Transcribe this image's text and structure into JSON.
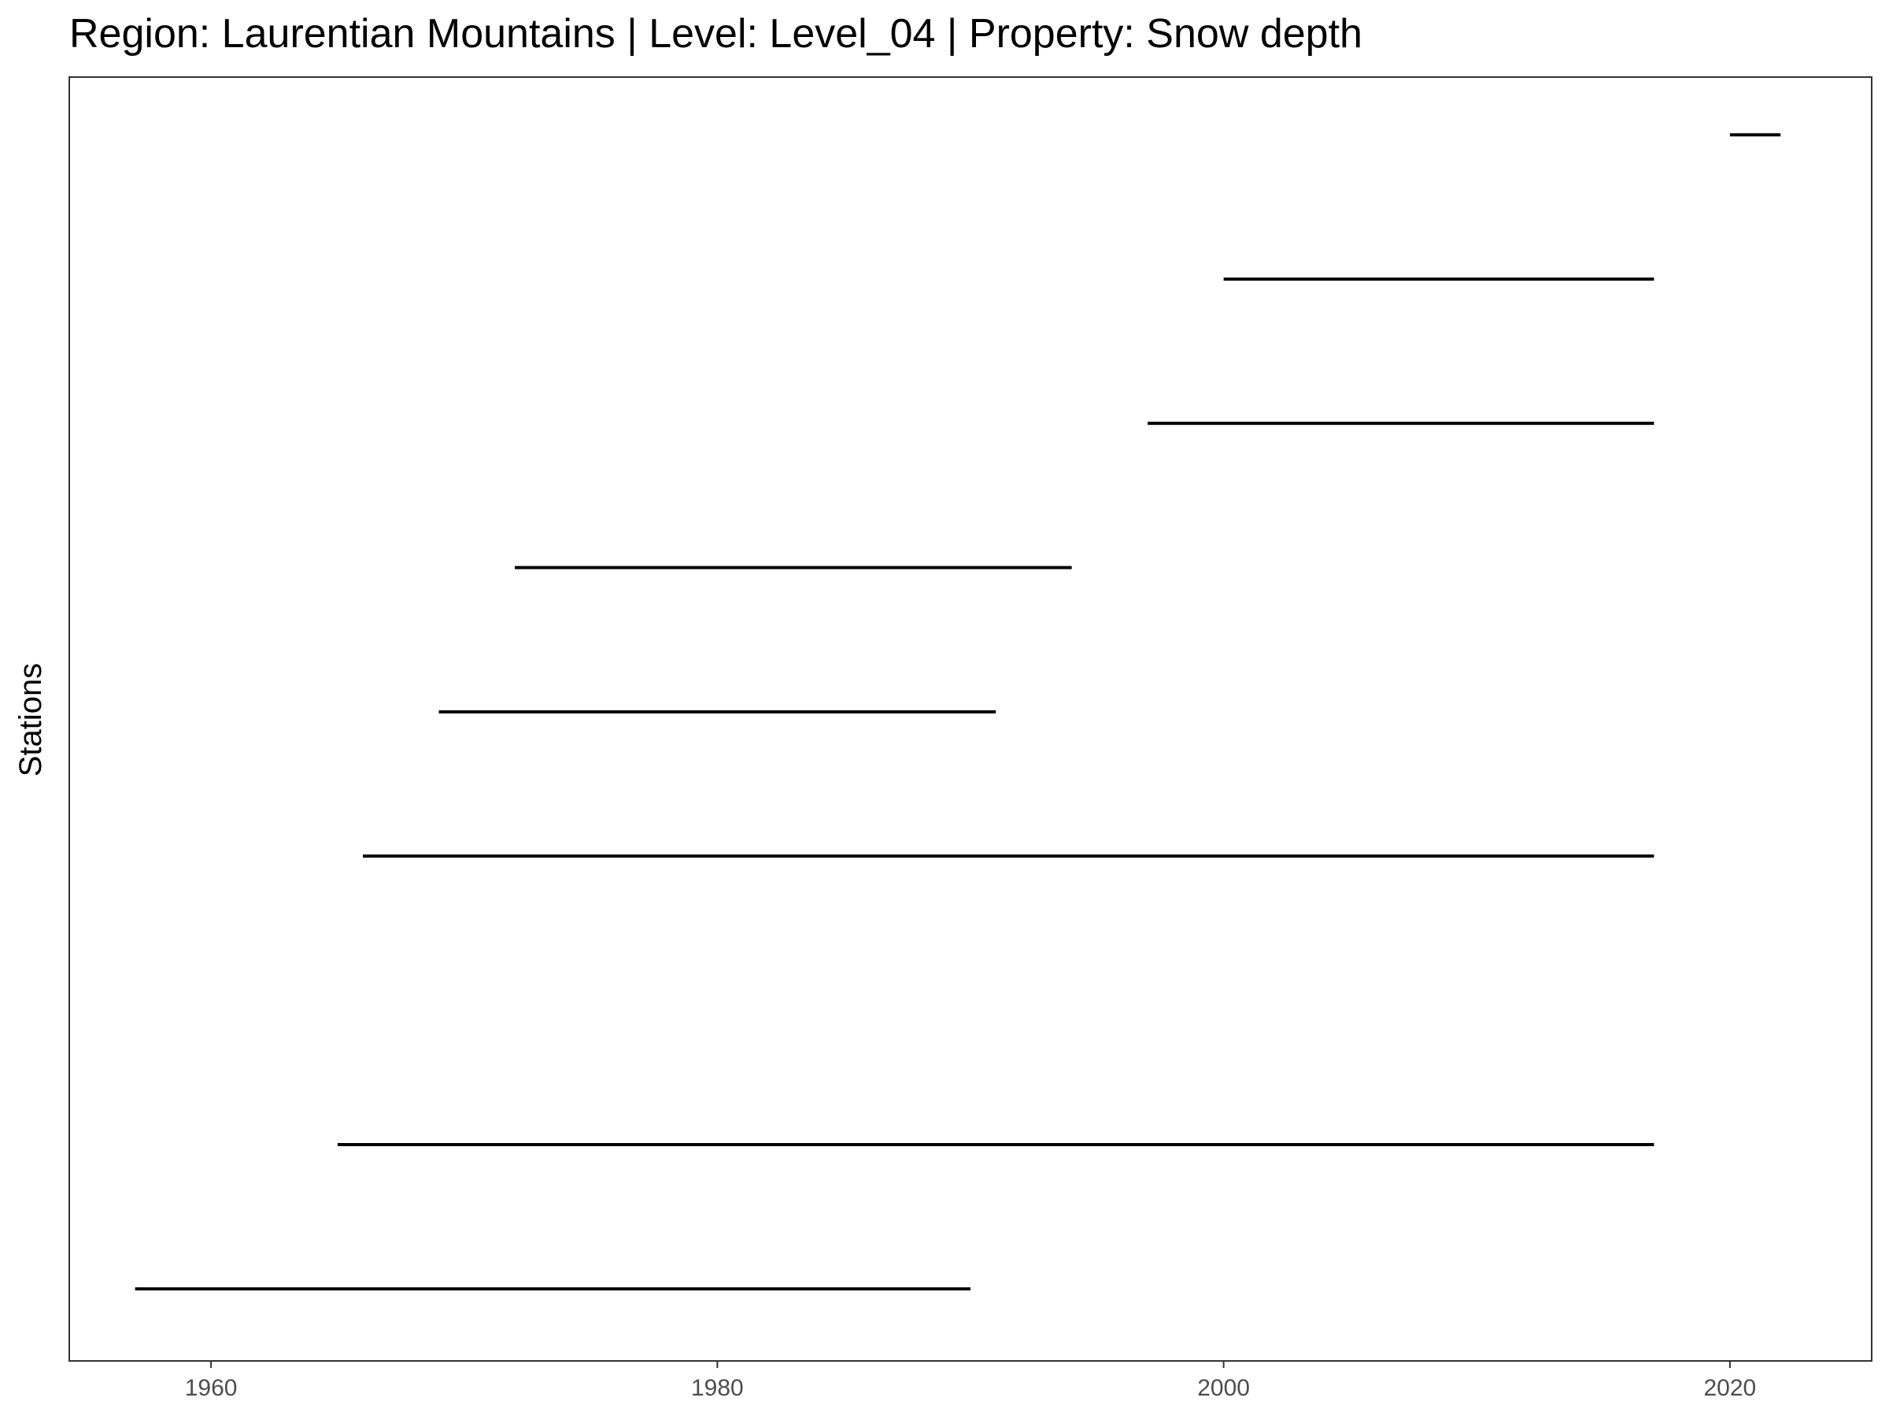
{
  "chart_data": {
    "type": "line",
    "title": "Region: Laurentian Mountains | Level: Level_04 | Property: Snow depth",
    "xlabel": "",
    "ylabel": "Stations",
    "xlim": [
      1954.4,
      2025.6
    ],
    "ylim": [
      0.5,
      9.4
    ],
    "x_ticks": [
      1960,
      1980,
      2000,
      2020
    ],
    "x_tick_labels": [
      "1960",
      "1980",
      "2000",
      "2020"
    ],
    "grid": false,
    "legend": "none",
    "series": [
      {
        "station": 1,
        "start": 1957.0,
        "end": 1990.0
      },
      {
        "station": 2,
        "start": 1965.0,
        "end": 2017.0
      },
      {
        "station": 4,
        "start": 1966.0,
        "end": 2017.0
      },
      {
        "station": 5,
        "start": 1969.0,
        "end": 1991.0
      },
      {
        "station": 6,
        "start": 1972.0,
        "end": 1994.0
      },
      {
        "station": 7,
        "start": 1997.0,
        "end": 2017.0
      },
      {
        "station": 8,
        "start": 2000.0,
        "end": 2017.0
      },
      {
        "station": 9,
        "start": 2020.0,
        "end": 2022.0
      }
    ],
    "colors": {
      "segment": "#000000",
      "panel_border": "#333333",
      "tick_label": "#4d4d4d"
    }
  }
}
